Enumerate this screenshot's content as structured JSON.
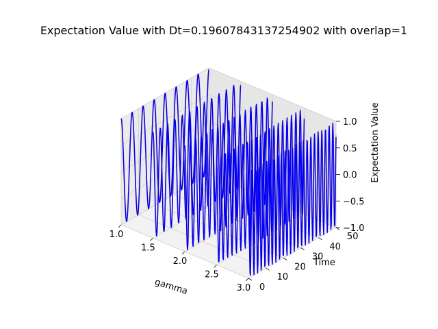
{
  "chart_data": {
    "type": "line",
    "projection": "3d",
    "title": "Expectation Value with Dt=0.19607843137254902 with overlap=1",
    "xlabel": "gamma",
    "ylabel": "Time",
    "zlabel": "Expectation Value",
    "xlim": [
      1.0,
      3.0
    ],
    "ylim": [
      0,
      50
    ],
    "zlim": [
      -1.0,
      1.0
    ],
    "x_ticks": [
      "1.0",
      "1.5",
      "2.0",
      "2.5",
      "3.0"
    ],
    "y_ticks": [
      "0",
      "10",
      "20",
      "30",
      "40",
      "50"
    ],
    "z_ticks": [
      "-1.0",
      "-0.5",
      "0.0",
      "0.5",
      "1.0"
    ],
    "grid": true,
    "series": [
      {
        "color": "#ffa500",
        "gamma": [
          1.0,
          1.5,
          2.0,
          2.5,
          3.0
        ],
        "time_range": [
          0,
          50
        ],
        "oscillation": "cos(gamma*t)"
      },
      {
        "color": "#0000ff",
        "gamma": [
          1.0,
          1.5,
          2.0,
          2.5,
          3.0
        ],
        "time_range": [
          0,
          50
        ],
        "oscillation": "cos(gamma*t)"
      }
    ]
  }
}
